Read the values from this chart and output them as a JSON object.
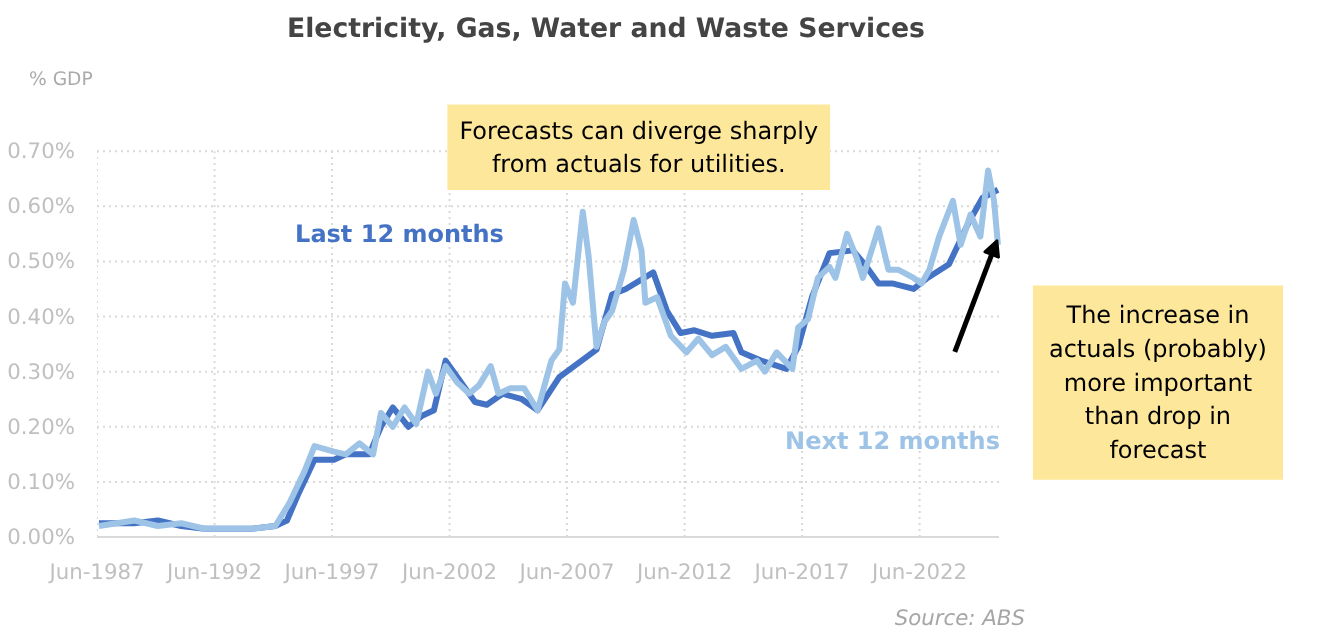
{
  "chart_data": {
    "type": "line",
    "title": "Electricity, Gas, Water and Waste Services",
    "ylabel": "% GDP",
    "xlim": [
      "1987-06",
      "2025-11"
    ],
    "xticks": [
      {
        "value": "1987-06",
        "label": "Jun-1987"
      },
      {
        "value": "1992-06",
        "label": "Jun-1992"
      },
      {
        "value": "1997-06",
        "label": "Jun-1997"
      },
      {
        "value": "2002-06",
        "label": "Jun-2002"
      },
      {
        "value": "2007-06",
        "label": "Jun-2007"
      },
      {
        "value": "2012-06",
        "label": "Jun-2012"
      },
      {
        "value": "2017-06",
        "label": "Jun-2017"
      },
      {
        "value": "2022-06",
        "label": "Jun-2022"
      }
    ],
    "ylim": [
      0,
      0.7
    ],
    "yticks": [
      {
        "value": 0,
        "label": "0.00%"
      },
      {
        "value": 0.1,
        "label": "0.10%"
      },
      {
        "value": 0.2,
        "label": "0.20%"
      },
      {
        "value": 0.3,
        "label": "0.30%"
      },
      {
        "value": 0.4,
        "label": "0.40%"
      },
      {
        "value": 0.5,
        "label": "0.50%"
      },
      {
        "value": 0.6,
        "label": "0.60%"
      },
      {
        "value": 0.7,
        "label": "0.70%"
      }
    ],
    "grid": true,
    "series": [
      {
        "name": "Last 12 months",
        "color": "#4472c4",
        "x": [
          "1987-07",
          "1989-01",
          "1990-01",
          "1991-01",
          "1992-01",
          "1993-01",
          "1994-01",
          "1995-01",
          "1995-07",
          "1996-01",
          "1996-09",
          "1997-07",
          "1998-01",
          "1999-01",
          "1999-07",
          "2000-01",
          "2000-09",
          "2001-04",
          "2001-10",
          "2002-04",
          "2002-10",
          "2003-07",
          "2004-01",
          "2004-09",
          "2005-07",
          "2006-03",
          "2007-02",
          "2008-09",
          "2009-05",
          "2009-12",
          "2011-02",
          "2011-09",
          "2012-04",
          "2012-11",
          "2013-08",
          "2014-07",
          "2014-11",
          "2015-09",
          "2016-10",
          "2017-04",
          "2017-11",
          "2018-08",
          "2019-08",
          "2020-03",
          "2020-09",
          "2021-04",
          "2022-03",
          "2022-10",
          "2023-09",
          "2024-07",
          "2025-02",
          "2025-10"
        ],
        "values": [
          0.025,
          0.025,
          0.03,
          0.02,
          0.015,
          0.015,
          0.015,
          0.02,
          0.03,
          0.08,
          0.14,
          0.14,
          0.15,
          0.15,
          0.2,
          0.235,
          0.2,
          0.22,
          0.23,
          0.32,
          0.29,
          0.245,
          0.24,
          0.26,
          0.25,
          0.23,
          0.29,
          0.34,
          0.44,
          0.45,
          0.48,
          0.41,
          0.37,
          0.375,
          0.365,
          0.37,
          0.335,
          0.32,
          0.305,
          0.345,
          0.435,
          0.515,
          0.52,
          0.49,
          0.46,
          0.46,
          0.45,
          0.47,
          0.495,
          0.57,
          0.615,
          0.63
        ]
      },
      {
        "name": "Next 12 months",
        "color": "#9dc3e6",
        "x": [
          "1987-07",
          "1989-01",
          "1990-01",
          "1991-01",
          "1992-01",
          "1993-01",
          "1994-01",
          "1995-01",
          "1995-08",
          "1996-04",
          "1996-09",
          "1997-07",
          "1998-01",
          "1998-08",
          "1999-03",
          "1999-07",
          "2000-01",
          "2000-07",
          "2001-01",
          "2001-07",
          "2001-11",
          "2002-04",
          "2002-10",
          "2003-04",
          "2003-09",
          "2004-03",
          "2004-07",
          "2005-01",
          "2005-08",
          "2006-03",
          "2006-10",
          "2007-02",
          "2007-05",
          "2007-09",
          "2008-02",
          "2008-05",
          "2008-09",
          "2009-01",
          "2009-05",
          "2009-11",
          "2010-04",
          "2010-08",
          "2010-10",
          "2011-04",
          "2011-11",
          "2012-07",
          "2013-01",
          "2013-08",
          "2014-03",
          "2014-11",
          "2015-07",
          "2015-11",
          "2016-05",
          "2017-01",
          "2017-04",
          "2017-09",
          "2018-02",
          "2018-08",
          "2018-11",
          "2019-05",
          "2019-10",
          "2020-01",
          "2020-09",
          "2021-02",
          "2021-07",
          "2022-03",
          "2022-07",
          "2022-11",
          "2023-04",
          "2023-11",
          "2024-03",
          "2024-08",
          "2025-01",
          "2025-05",
          "2025-08",
          "2025-10"
        ],
        "values": [
          0.02,
          0.03,
          0.02,
          0.025,
          0.015,
          0.015,
          0.015,
          0.02,
          0.06,
          0.12,
          0.165,
          0.155,
          0.15,
          0.17,
          0.15,
          0.225,
          0.2,
          0.235,
          0.205,
          0.3,
          0.26,
          0.31,
          0.28,
          0.26,
          0.275,
          0.31,
          0.26,
          0.27,
          0.27,
          0.23,
          0.32,
          0.34,
          0.46,
          0.425,
          0.59,
          0.51,
          0.345,
          0.39,
          0.41,
          0.485,
          0.575,
          0.52,
          0.425,
          0.435,
          0.365,
          0.335,
          0.36,
          0.33,
          0.345,
          0.305,
          0.32,
          0.3,
          0.335,
          0.305,
          0.38,
          0.395,
          0.47,
          0.49,
          0.47,
          0.55,
          0.505,
          0.47,
          0.56,
          0.485,
          0.485,
          0.47,
          0.46,
          0.485,
          0.545,
          0.61,
          0.53,
          0.585,
          0.545,
          0.665,
          0.61,
          0.53
        ]
      }
    ],
    "annotations": [
      "Forecasts can diverge sharply from actuals for utilities.",
      "The increase in actuals (probably) more important than drop in forecast",
      "Source: ABS"
    ]
  }
}
